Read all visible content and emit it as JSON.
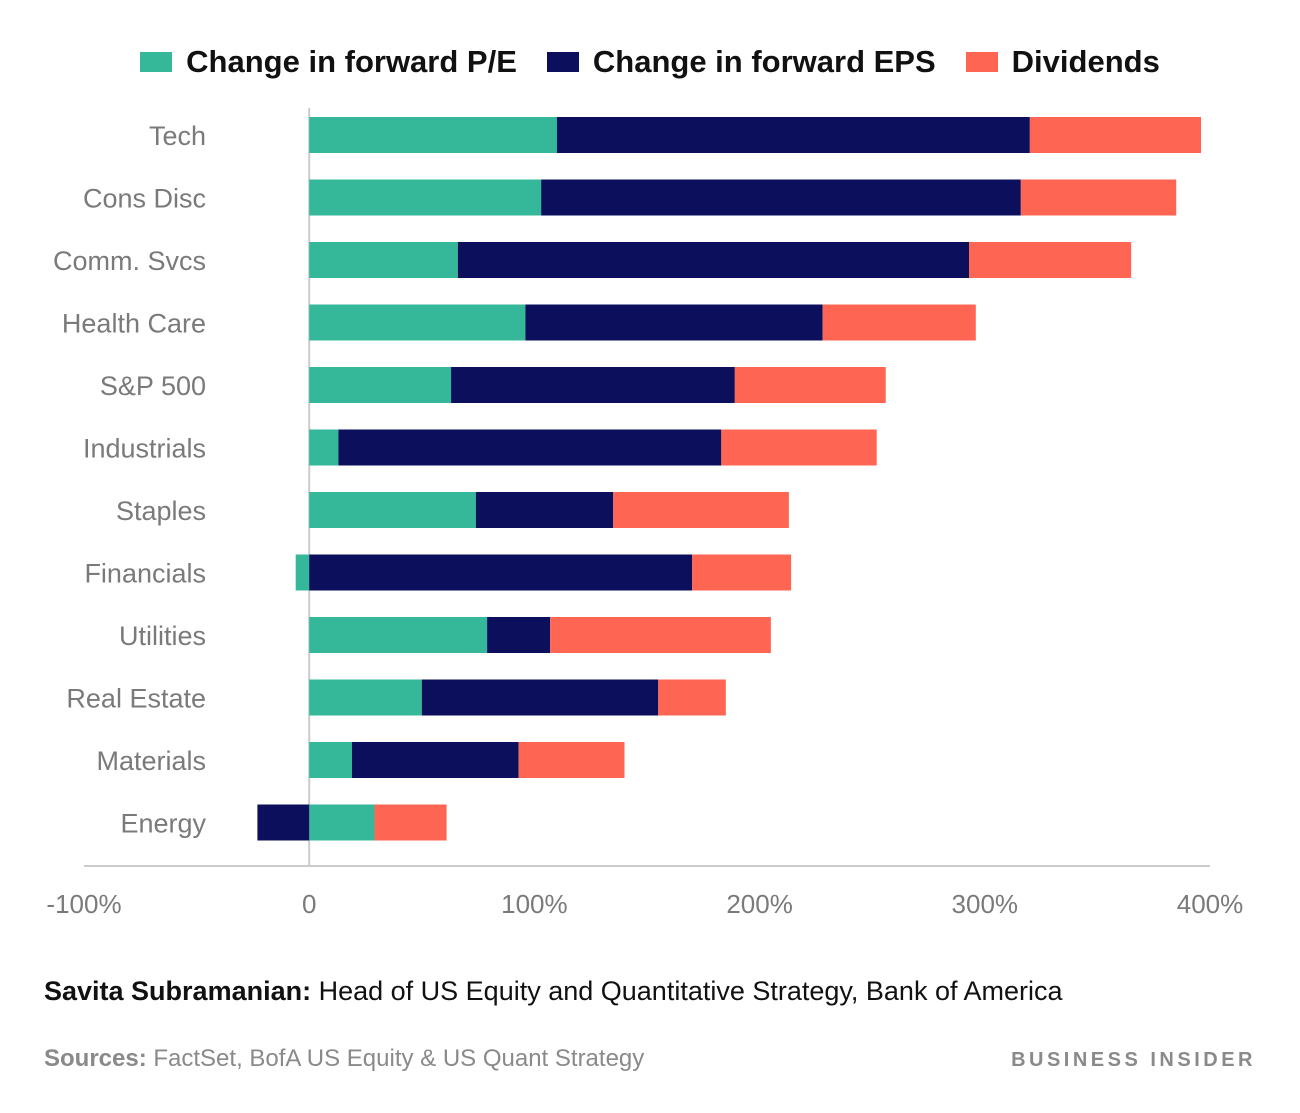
{
  "colors": {
    "pe": "#35b899",
    "eps": "#0b0f5c",
    "div": "#fe6552",
    "axis": "#cccccc",
    "label": "#7a7a7a"
  },
  "chart_data": {
    "type": "bar",
    "orientation": "horizontal",
    "stacked": true,
    "categories": [
      "Tech",
      "Cons Disc",
      "Comm. Svcs",
      "Health Care",
      "S&P 500",
      "Industrials",
      "Staples",
      "Financials",
      "Utilities",
      "Real Estate",
      "Materials",
      "Energy"
    ],
    "series": [
      {
        "name": "Change in forward P/E",
        "key": "pe",
        "values": [
          110,
          103,
          66,
          96,
          63,
          13,
          74,
          -6,
          79,
          50,
          19,
          29
        ]
      },
      {
        "name": "Change in forward EPS",
        "key": "eps",
        "values": [
          210,
          213,
          227,
          132,
          126,
          170,
          61,
          170,
          28,
          105,
          74,
          -23
        ]
      },
      {
        "name": "Dividends",
        "key": "div",
        "values": [
          76,
          69,
          72,
          68,
          67,
          69,
          78,
          44,
          98,
          30,
          47,
          32
        ]
      }
    ],
    "xlim": [
      -100,
      400
    ],
    "xticks": [
      -100,
      0,
      100,
      200,
      300,
      400
    ],
    "xtick_labels": [
      "-100%",
      "0",
      "100%",
      "200%",
      "300%",
      "400%"
    ],
    "grid": false,
    "legend_position": "top"
  },
  "subtitle": {
    "name": "Savita Subramanian:",
    "role": " Head of US Equity and Quantitative Strategy, Bank of America"
  },
  "sources": {
    "label": "Sources:",
    "text": " FactSet, BofA US Equity & US Quant Strategy"
  },
  "brand": "BUSINESS INSIDER"
}
